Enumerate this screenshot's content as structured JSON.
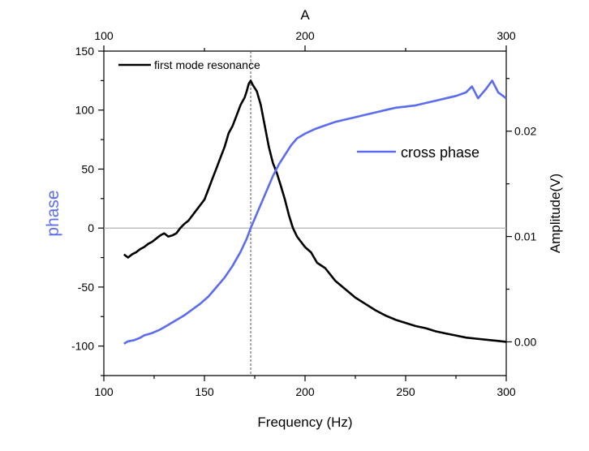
{
  "chart_data": {
    "type": "line",
    "top_axis_title": "A",
    "xlabel": "Frequency (Hz)",
    "ylabel_left": "phase",
    "ylabel_right": "Amplitude(V)",
    "xlim": [
      100,
      300
    ],
    "ylim_left": [
      -125,
      150
    ],
    "ylim_right": [
      -0.0032,
      0.0276
    ],
    "x_ticks": [
      "100",
      "150",
      "200",
      "250",
      "300"
    ],
    "top_ticks": [
      "100",
      "200",
      "300"
    ],
    "y_left_ticks": [
      "-100",
      "-50",
      "0",
      "50",
      "100",
      "150"
    ],
    "y_right_ticks": [
      "0.00",
      "0.01",
      "0.02"
    ],
    "reference_vline_x": 173,
    "reference_hline_phase": 0,
    "colors": {
      "amplitude": "#000000",
      "phase": "#5b6cf0",
      "phase_label": "#5b6cf0",
      "reference": "#aaaaaa"
    },
    "series": [
      {
        "name": "first mode resonance",
        "axis": "right",
        "color": "#000000",
        "x": [
          110,
          112,
          114,
          116,
          118,
          120,
          122,
          124,
          126,
          128,
          130,
          132,
          134,
          136,
          138,
          140,
          142,
          144,
          146,
          148,
          150,
          152,
          154,
          156,
          158,
          160,
          162,
          164,
          166,
          168,
          170,
          171,
          172,
          173,
          174,
          176,
          178,
          180,
          182,
          184,
          186,
          188,
          190,
          192,
          194,
          196,
          198,
          200,
          203,
          206,
          210,
          215,
          220,
          225,
          230,
          235,
          240,
          245,
          250,
          255,
          260,
          265,
          270,
          275,
          280,
          285,
          290,
          295,
          300
        ],
        "y": [
          0.0083,
          0.008,
          0.0083,
          0.0085,
          0.0088,
          0.009,
          0.0093,
          0.0095,
          0.0098,
          0.0101,
          0.0103,
          0.01,
          0.0101,
          0.0103,
          0.0108,
          0.0112,
          0.0115,
          0.012,
          0.0125,
          0.013,
          0.0135,
          0.0145,
          0.0155,
          0.0165,
          0.0175,
          0.0185,
          0.0198,
          0.0205,
          0.0215,
          0.0225,
          0.0232,
          0.0238,
          0.0245,
          0.0248,
          0.0244,
          0.0238,
          0.0225,
          0.0205,
          0.0185,
          0.017,
          0.016,
          0.0148,
          0.0135,
          0.012,
          0.0108,
          0.01,
          0.0095,
          0.009,
          0.0085,
          0.0075,
          0.007,
          0.0058,
          0.005,
          0.0042,
          0.0036,
          0.003,
          0.0025,
          0.0021,
          0.0018,
          0.0015,
          0.0013,
          0.001,
          0.0008,
          0.0006,
          0.0004,
          0.0003,
          0.0002,
          0.0001,
          0.0
        ]
      },
      {
        "name": "cross phase",
        "axis": "left",
        "color": "#5b6cf0",
        "x": [
          110,
          112,
          115,
          118,
          120,
          124,
          128,
          132,
          136,
          140,
          144,
          148,
          152,
          156,
          160,
          164,
          168,
          171,
          173,
          175,
          178,
          181,
          184,
          187,
          190,
          193,
          196,
          200,
          205,
          210,
          215,
          220,
          225,
          230,
          235,
          240,
          245,
          250,
          255,
          260,
          265,
          270,
          275,
          280,
          283,
          286,
          290,
          293,
          296,
          300
        ],
        "y": [
          -98,
          -96,
          -95,
          -93,
          -91,
          -89,
          -86,
          -82,
          -78,
          -74,
          -69,
          -64,
          -58,
          -50,
          -42,
          -32,
          -20,
          -9,
          0,
          8,
          20,
          32,
          44,
          54,
          62,
          70,
          76,
          80,
          84,
          87,
          90,
          92,
          94,
          96,
          98,
          100,
          102,
          103,
          104,
          106,
          108,
          110,
          112,
          115,
          120,
          110,
          118,
          125,
          115,
          110
        ]
      }
    ],
    "legend": [
      {
        "label": "first mode resonance",
        "color": "#000000",
        "position": "top-left"
      },
      {
        "label": "cross phase",
        "color": "#5b6cf0",
        "position": "center-right"
      }
    ]
  }
}
